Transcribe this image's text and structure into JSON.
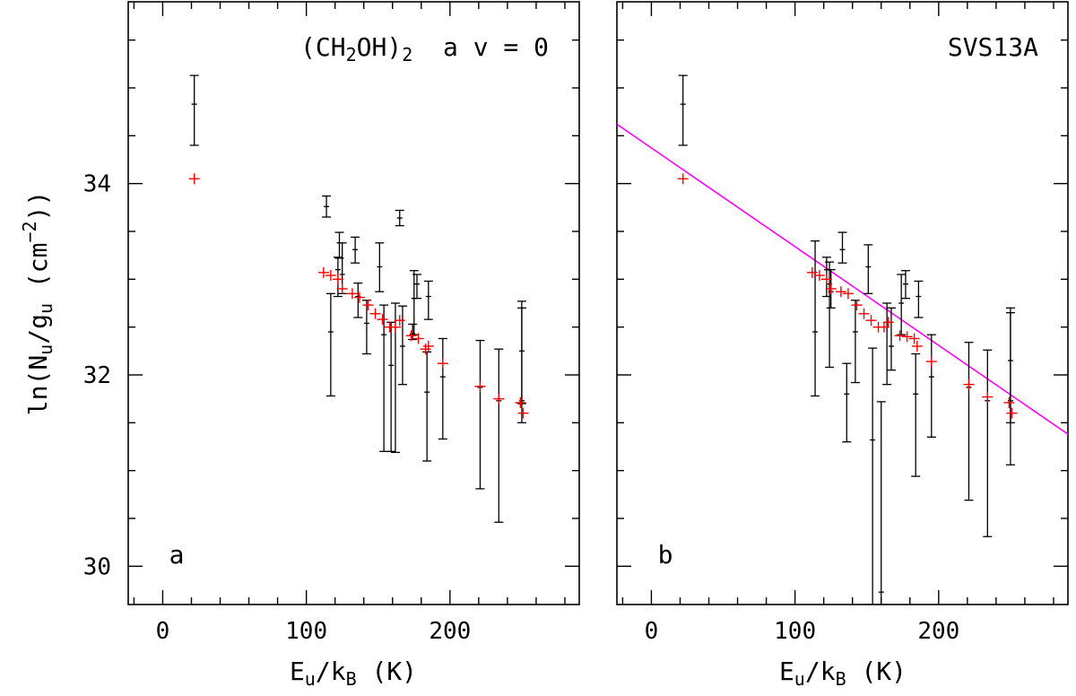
{
  "chart_data": {
    "type": "scatter",
    "ylabel": {
      "pre": "ln(N",
      "u1": "u",
      "mid": "/g",
      "u2": "u",
      "post": " (cm",
      "exp": "−2",
      "end": "))"
    },
    "xlabel": {
      "pre": "E",
      "sub1": "u",
      "mid": "/k",
      "sub2": "B",
      "post": " (K)"
    },
    "xlim": [
      -24,
      290
    ],
    "ylim": [
      29.6,
      35.9
    ],
    "xticks": [
      "0",
      "100",
      "200"
    ],
    "xtick_values": [
      0,
      100,
      200
    ],
    "yticks": [
      "30",
      "32",
      "34"
    ],
    "ytick_values": [
      30,
      32,
      34
    ],
    "colors": {
      "observed": "#000000",
      "model": "#ff0000",
      "fit": "#ff00ff"
    },
    "panels": [
      {
        "label": "a",
        "title": {
          "pre": "(CH",
          "sub": "2",
          "mid": "OH)",
          "sub2": "2",
          "post": "  a v = 0"
        },
        "observed": [
          {
            "x": 22,
            "y": 34.83,
            "lo": 34.4,
            "hi": 35.13
          },
          {
            "x": 114,
            "y": 33.76,
            "lo": 33.65,
            "hi": 33.87
          },
          {
            "x": 117,
            "y": 32.45,
            "lo": 31.78,
            "hi": 32.85
          },
          {
            "x": 122,
            "y": 33.1,
            "lo": 32.82,
            "hi": 33.23
          },
          {
            "x": 123,
            "y": 33.38,
            "lo": 33.22,
            "hi": 33.49
          },
          {
            "x": 125,
            "y": 33.05,
            "lo": 32.85,
            "hi": 33.38
          },
          {
            "x": 134,
            "y": 33.31,
            "lo": 33.17,
            "hi": 33.44
          },
          {
            "x": 136,
            "y": 32.82,
            "lo": 32.6,
            "hi": 32.96
          },
          {
            "x": 142,
            "y": 32.54,
            "lo": 32.22,
            "hi": 32.78
          },
          {
            "x": 151,
            "y": 33.13,
            "lo": 32.87,
            "hi": 33.38
          },
          {
            "x": 154,
            "y": 32.42,
            "lo": 31.2,
            "hi": 32.73
          },
          {
            "x": 159,
            "y": 32.1,
            "lo": 31.2,
            "hi": 32.55
          },
          {
            "x": 162,
            "y": 32.5,
            "lo": 31.19,
            "hi": 32.75
          },
          {
            "x": 165,
            "y": 33.64,
            "lo": 33.56,
            "hi": 33.72
          },
          {
            "x": 167,
            "y": 32.3,
            "lo": 31.9,
            "hi": 32.72
          },
          {
            "x": 174,
            "y": 32.43,
            "lo": 32.37,
            "hi": 32.53
          },
          {
            "x": 175,
            "y": 32.8,
            "lo": 32.42,
            "hi": 33.09
          },
          {
            "x": 177,
            "y": 32.95,
            "lo": 32.8,
            "hi": 33.05
          },
          {
            "x": 184,
            "y": 31.82,
            "lo": 31.1,
            "hi": 32.24
          },
          {
            "x": 185,
            "y": 32.82,
            "lo": 32.58,
            "hi": 32.98
          },
          {
            "x": 195,
            "y": 31.98,
            "lo": 31.33,
            "hi": 32.38
          },
          {
            "x": 221,
            "y": 31.87,
            "lo": 30.81,
            "hi": 32.36
          },
          {
            "x": 234,
            "y": 31.73,
            "lo": 30.46,
            "hi": 32.27
          },
          {
            "x": 250,
            "y": 31.73,
            "lo": 31.5,
            "hi": 32.77
          },
          {
            "x": 250,
            "y": 32.25,
            "lo": 31.7,
            "hi": 32.7
          }
        ],
        "model": [
          {
            "x": 22,
            "y": 34.05
          },
          {
            "x": 112,
            "y": 33.07
          },
          {
            "x": 117,
            "y": 33.04
          },
          {
            "x": 122,
            "y": 33.0
          },
          {
            "x": 125,
            "y": 32.9
          },
          {
            "x": 132,
            "y": 32.85
          },
          {
            "x": 137,
            "y": 32.81
          },
          {
            "x": 143,
            "y": 32.73
          },
          {
            "x": 148,
            "y": 32.64
          },
          {
            "x": 153,
            "y": 32.58
          },
          {
            "x": 158,
            "y": 32.5
          },
          {
            "x": 162,
            "y": 32.5
          },
          {
            "x": 165,
            "y": 32.57
          },
          {
            "x": 173,
            "y": 32.41
          },
          {
            "x": 178,
            "y": 32.38
          },
          {
            "x": 183,
            "y": 32.27
          },
          {
            "x": 185,
            "y": 32.3
          },
          {
            "x": 195,
            "y": 32.12
          },
          {
            "x": 221,
            "y": 31.88
          },
          {
            "x": 234,
            "y": 31.75
          },
          {
            "x": 249,
            "y": 31.71
          },
          {
            "x": 251,
            "y": 31.6
          }
        ]
      },
      {
        "label": "b",
        "title": "SVS13A",
        "fit_line": {
          "x": [
            -24,
            290
          ],
          "y": [
            34.62,
            31.38
          ]
        },
        "observed": [
          {
            "x": 22,
            "y": 34.83,
            "lo": 34.4,
            "hi": 35.13
          },
          {
            "x": 114,
            "y": 32.45,
            "lo": 31.78,
            "hi": 33.4
          },
          {
            "x": 122,
            "y": 33.1,
            "lo": 32.82,
            "hi": 33.23
          },
          {
            "x": 124,
            "y": 32.95,
            "lo": 32.08,
            "hi": 33.18
          },
          {
            "x": 125,
            "y": 32.87,
            "lo": 32.7,
            "hi": 33.1
          },
          {
            "x": 133,
            "y": 33.31,
            "lo": 33.17,
            "hi": 33.49
          },
          {
            "x": 136,
            "y": 31.8,
            "lo": 31.3,
            "hi": 32.12
          },
          {
            "x": 142,
            "y": 32.45,
            "lo": 31.92,
            "hi": 32.78
          },
          {
            "x": 151,
            "y": 33.13,
            "lo": 32.85,
            "hi": 33.36
          },
          {
            "x": 154,
            "y": 31.32,
            "lo": 29.6,
            "hi": 32.28
          },
          {
            "x": 160,
            "y": 29.73,
            "lo": 29.6,
            "hi": 31.72
          },
          {
            "x": 164,
            "y": 32.55,
            "lo": 31.9,
            "hi": 32.75
          },
          {
            "x": 167,
            "y": 32.3,
            "lo": 32.05,
            "hi": 32.7
          },
          {
            "x": 174,
            "y": 32.75,
            "lo": 32.42,
            "hi": 33.05
          },
          {
            "x": 177,
            "y": 32.95,
            "lo": 32.8,
            "hi": 33.09
          },
          {
            "x": 184,
            "y": 31.8,
            "lo": 30.94,
            "hi": 32.22
          },
          {
            "x": 186,
            "y": 32.82,
            "lo": 32.6,
            "hi": 32.98
          },
          {
            "x": 195,
            "y": 31.98,
            "lo": 31.35,
            "hi": 32.42
          },
          {
            "x": 221,
            "y": 31.87,
            "lo": 30.69,
            "hi": 32.34
          },
          {
            "x": 234,
            "y": 31.73,
            "lo": 30.31,
            "hi": 32.26
          },
          {
            "x": 250,
            "y": 31.73,
            "lo": 31.06,
            "hi": 32.7
          },
          {
            "x": 250,
            "y": 32.15,
            "lo": 31.5,
            "hi": 32.65
          }
        ],
        "model": [
          {
            "x": 22,
            "y": 34.05
          },
          {
            "x": 112,
            "y": 33.07
          },
          {
            "x": 117,
            "y": 33.04
          },
          {
            "x": 122,
            "y": 33.0
          },
          {
            "x": 125,
            "y": 32.9
          },
          {
            "x": 132,
            "y": 32.87
          },
          {
            "x": 137,
            "y": 32.85
          },
          {
            "x": 143,
            "y": 32.73
          },
          {
            "x": 148,
            "y": 32.64
          },
          {
            "x": 153,
            "y": 32.57
          },
          {
            "x": 158,
            "y": 32.5
          },
          {
            "x": 162,
            "y": 32.5
          },
          {
            "x": 165,
            "y": 32.55
          },
          {
            "x": 173,
            "y": 32.41
          },
          {
            "x": 178,
            "y": 32.4
          },
          {
            "x": 183,
            "y": 32.38
          },
          {
            "x": 185,
            "y": 32.3
          },
          {
            "x": 195,
            "y": 32.14
          },
          {
            "x": 221,
            "y": 31.9
          },
          {
            "x": 234,
            "y": 31.77
          },
          {
            "x": 249,
            "y": 31.71
          },
          {
            "x": 251,
            "y": 31.6
          }
        ]
      }
    ]
  }
}
